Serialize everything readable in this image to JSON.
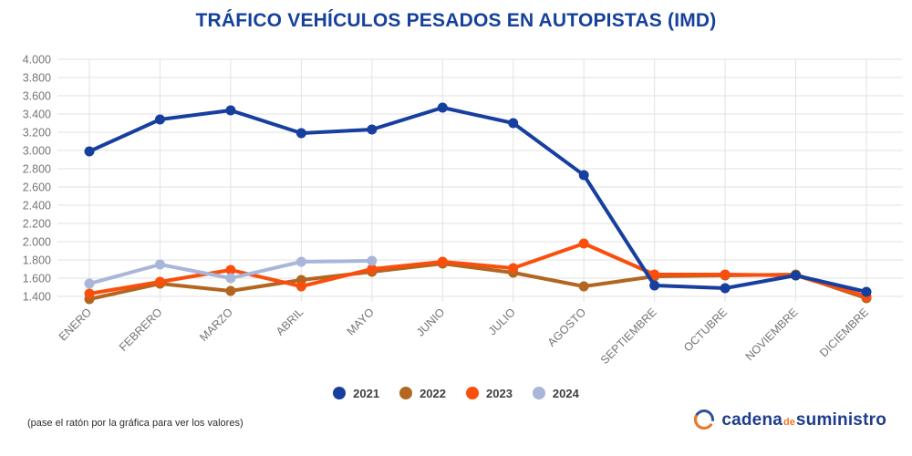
{
  "title": "TRÁFICO VEHÍCULOS PESADOS EN AUTOPISTAS (IMD)",
  "footer": {
    "note": "(pase el ratón por la gráfica para ver los valores)"
  },
  "logo": {
    "icon": "circular-arrows-icon",
    "word1": "cadena",
    "word2": "de",
    "word3": "suministro"
  },
  "colors": {
    "title": "#15419b",
    "gridline": "#e2e2e2",
    "axis_label": "#757575",
    "legend_label": "#3f3f3f",
    "logo_blue": "#1e3c8c",
    "logo_orange": "#ef7622"
  },
  "chart_data": {
    "type": "line",
    "title": "TRÁFICO VEHÍCULOS PESADOS EN AUTOPISTAS (IMD)",
    "categories": [
      "ENERO",
      "FEBRERO",
      "MARZO",
      "ABRIL",
      "MAYO",
      "JUNIO",
      "JULIO",
      "AGOSTO",
      "SEPTIEMBRE",
      "OCTUBRE",
      "NOVIEMBRE",
      "DICIEMBRE"
    ],
    "series": [
      {
        "name": "2021",
        "color": "#173f9e",
        "values": [
          2990,
          3340,
          3440,
          3190,
          3230,
          3470,
          3300,
          2730,
          1520,
          1490,
          1630,
          1450
        ]
      },
      {
        "name": "2022",
        "color": "#b2661f",
        "values": [
          1370,
          1540,
          1460,
          1580,
          1670,
          1760,
          1660,
          1510,
          1620,
          1630,
          1640,
          1380
        ]
      },
      {
        "name": "2023",
        "color": "#fa4e0d",
        "values": [
          1430,
          1560,
          1690,
          1510,
          1700,
          1780,
          1710,
          1980,
          1640,
          1640,
          1630,
          1400
        ]
      },
      {
        "name": "2024",
        "color": "#a9b6da",
        "values": [
          1540,
          1750,
          1600,
          1780,
          1790,
          null,
          null,
          null,
          null,
          null,
          null,
          null
        ]
      }
    ],
    "y_ticks": [
      "4.000",
      "3.800",
      "3.600",
      "3.400",
      "3.200",
      "3.000",
      "2.800",
      "2.600",
      "2.400",
      "2.200",
      "2.000",
      "1.800",
      "1.600",
      "1.400"
    ],
    "ylim": [
      1400,
      4000
    ],
    "xlabel": "",
    "ylabel": "",
    "grid": true,
    "legend_position": "bottom"
  }
}
